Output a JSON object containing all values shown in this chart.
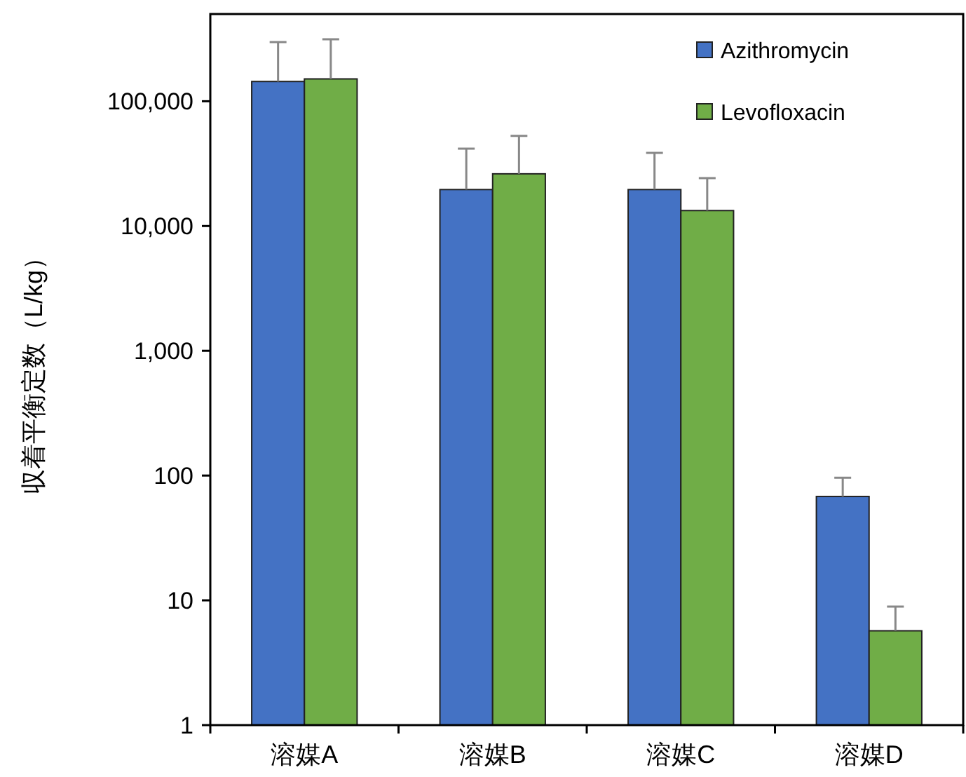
{
  "chart_data": {
    "type": "bar",
    "ylabel": "収着平衡定数（L/kg）",
    "log": true,
    "categories": [
      "溶媒A",
      "溶媒B",
      "溶媒C",
      "溶媒D"
    ],
    "series": [
      {
        "name": "Azithromycin",
        "color": "#4472c4",
        "values": [
          144000,
          19600,
          19600,
          68
        ],
        "errors": [
          [
            144000,
            298000
          ],
          [
            19600,
            41700
          ],
          [
            19600,
            38600
          ],
          [
            68,
            96
          ]
        ]
      },
      {
        "name": "Levofloxacin",
        "color": "#70ad47",
        "values": [
          151000,
          26200,
          13300,
          5.7
        ],
        "errors": [
          [
            151000,
            314000
          ],
          [
            26200,
            52800
          ],
          [
            13300,
            24200
          ],
          [
            5.7,
            8.9
          ]
        ]
      }
    ],
    "ylim": [
      1,
      500000
    ],
    "yticks": [
      1,
      10,
      100,
      {
        "value": 1000,
        "label": "1,000"
      },
      {
        "value": 10000,
        "label": "10,000"
      },
      {
        "value": 100000,
        "label": "100,000"
      }
    ],
    "legend": "top right",
    "grid": false
  }
}
